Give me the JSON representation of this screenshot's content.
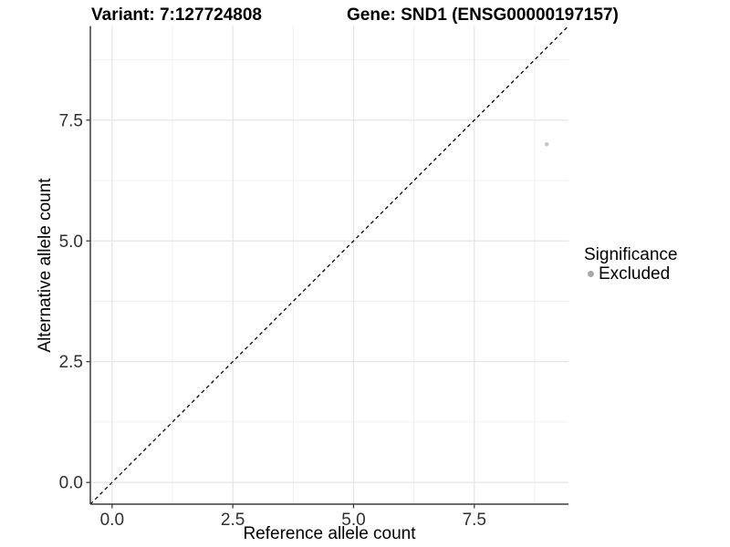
{
  "chart_data": {
    "type": "scatter",
    "title_left": "Variant: 7:127724808",
    "title_right": "Gene: SND1 (ENSG00000197157)",
    "xlabel": "Reference allele count",
    "ylabel": "Alternative allele count",
    "xlim": [
      -0.45,
      9.45
    ],
    "ylim": [
      -0.45,
      9.45
    ],
    "x_ticks": [
      0,
      2.5,
      5,
      7.5
    ],
    "x_tick_labels": [
      "0.0",
      "2.5",
      "5.0",
      "7.5"
    ],
    "x_minor_ticks": [
      1.25,
      3.75,
      6.25,
      8.75
    ],
    "y_ticks": [
      0,
      2.5,
      5,
      7.5
    ],
    "y_tick_labels": [
      "0.0",
      "2.5",
      "5.0",
      "7.5"
    ],
    "y_minor_ticks": [
      1.25,
      3.75,
      6.25,
      8.75
    ],
    "grid": true,
    "series": [
      {
        "name": "Excluded",
        "color": "#c6c6c6",
        "points": [
          {
            "x": 9,
            "y": 7
          }
        ]
      }
    ],
    "identity_line": {
      "style": "dashed",
      "color": "#000000",
      "from": [
        -0.45,
        -0.45
      ],
      "to": [
        9.45,
        9.45
      ]
    },
    "legend": {
      "title": "Significance",
      "position": "right",
      "entries": [
        {
          "label": "Excluded",
          "color": "#a9a9a9"
        }
      ]
    },
    "theme": {
      "background": "#ffffff",
      "grid_major": "#e4e4e4",
      "grid_minor": "#f0f0f0",
      "axis_line": "#3c3c3c",
      "tick_text": "#303030"
    }
  }
}
